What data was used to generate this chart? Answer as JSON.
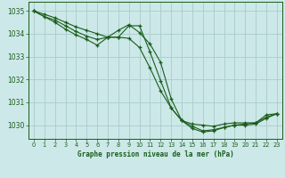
{
  "title": "Graphe pression niveau de la mer (hPa)",
  "bg_color": "#cce8e8",
  "grid_color": "#aacccc",
  "line_color": "#1a5c1a",
  "text_color": "#1a5c1a",
  "xlim": [
    -0.5,
    23.5
  ],
  "ylim": [
    1029.4,
    1035.4
  ],
  "yticks": [
    1030,
    1031,
    1032,
    1033,
    1034,
    1035
  ],
  "xticks": [
    0,
    1,
    2,
    3,
    4,
    5,
    6,
    7,
    8,
    9,
    10,
    11,
    12,
    13,
    14,
    15,
    16,
    17,
    18,
    19,
    20,
    21,
    22,
    23
  ],
  "line1_x": [
    0,
    1,
    2,
    3,
    4,
    5,
    6,
    7,
    8,
    9,
    10,
    11,
    12,
    13,
    14,
    15,
    16,
    17,
    18,
    19,
    20,
    21,
    22,
    23
  ],
  "line1_y": [
    1035.0,
    1034.85,
    1034.7,
    1034.5,
    1034.3,
    1034.15,
    1034.0,
    1033.85,
    1034.15,
    1034.4,
    1034.05,
    1033.55,
    1032.75,
    1031.15,
    1030.2,
    1030.05,
    1030.0,
    1029.95,
    1030.05,
    1030.1,
    1030.1,
    1030.1,
    1030.45,
    1030.5
  ],
  "line2_x": [
    0,
    1,
    2,
    3,
    4,
    5,
    6,
    7,
    8,
    9,
    10,
    11,
    12,
    13,
    14,
    15,
    16,
    17,
    18,
    19,
    20,
    21,
    22,
    23
  ],
  "line2_y": [
    1035.0,
    1034.75,
    1034.6,
    1034.35,
    1034.1,
    1033.9,
    1033.75,
    1033.85,
    1033.85,
    1034.35,
    1034.35,
    1033.2,
    1031.95,
    1030.75,
    1030.2,
    1029.95,
    1029.75,
    1029.8,
    1029.9,
    1030.0,
    1030.05,
    1030.1,
    1030.35,
    1030.5
  ],
  "line3_x": [
    0,
    2,
    3,
    4,
    5,
    6,
    7,
    8,
    9,
    10,
    11,
    12,
    13,
    14,
    15,
    16,
    17,
    18,
    19,
    20,
    21,
    22,
    23
  ],
  "line3_y": [
    1035.0,
    1034.5,
    1034.2,
    1033.95,
    1033.75,
    1033.5,
    1033.85,
    1033.85,
    1033.8,
    1033.4,
    1032.5,
    1031.5,
    1030.75,
    1030.2,
    1029.85,
    1029.7,
    1029.75,
    1029.9,
    1030.0,
    1030.0,
    1030.05,
    1030.3,
    1030.5
  ]
}
